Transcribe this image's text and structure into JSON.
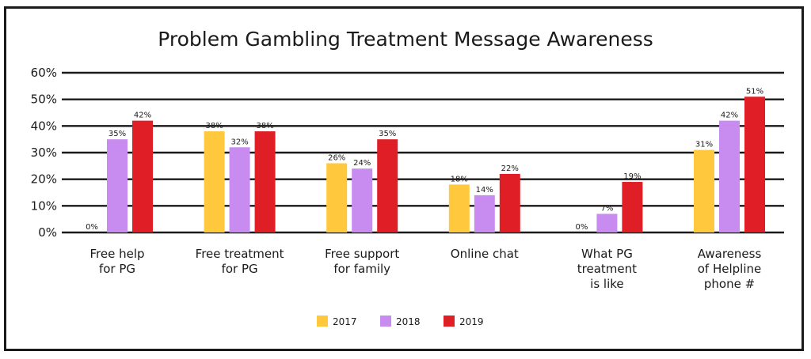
{
  "chart_data": {
    "type": "bar",
    "title": "Problem Gambling Treatment Message Awareness",
    "categories": [
      [
        "Free help",
        "for PG"
      ],
      [
        "Free treatment",
        "for PG"
      ],
      [
        "Free support",
        "for family"
      ],
      [
        "Online chat"
      ],
      [
        "What PG",
        "treatment",
        "is like"
      ],
      [
        "Awareness",
        "of Helpline",
        "phone #"
      ]
    ],
    "series": [
      {
        "name": "2017",
        "color": "#ffc83d",
        "values": [
          0,
          38,
          26,
          18,
          0,
          31
        ],
        "labels": [
          "0%",
          "38%",
          "26%",
          "18%",
          "0%",
          "31%"
        ]
      },
      {
        "name": "2018",
        "color": "#c88cf0",
        "values": [
          35,
          32,
          24,
          14,
          7,
          42
        ],
        "labels": [
          "35%",
          "32%",
          "24%",
          "14%",
          "7%",
          "42%"
        ]
      },
      {
        "name": "2019",
        "color": "#e01e26",
        "values": [
          42,
          38,
          35,
          22,
          19,
          51
        ],
        "labels": [
          "42%",
          "38%",
          "35%",
          "22%",
          "19%",
          "51%"
        ]
      }
    ],
    "yticks": [
      0,
      10,
      20,
      30,
      40,
      50,
      60
    ],
    "ytick_labels": [
      "0%",
      "10%",
      "20%",
      "30%",
      "40%",
      "50%",
      "60%"
    ],
    "ylim": [
      0,
      60
    ],
    "grid": true,
    "legend": "bottom-center"
  }
}
